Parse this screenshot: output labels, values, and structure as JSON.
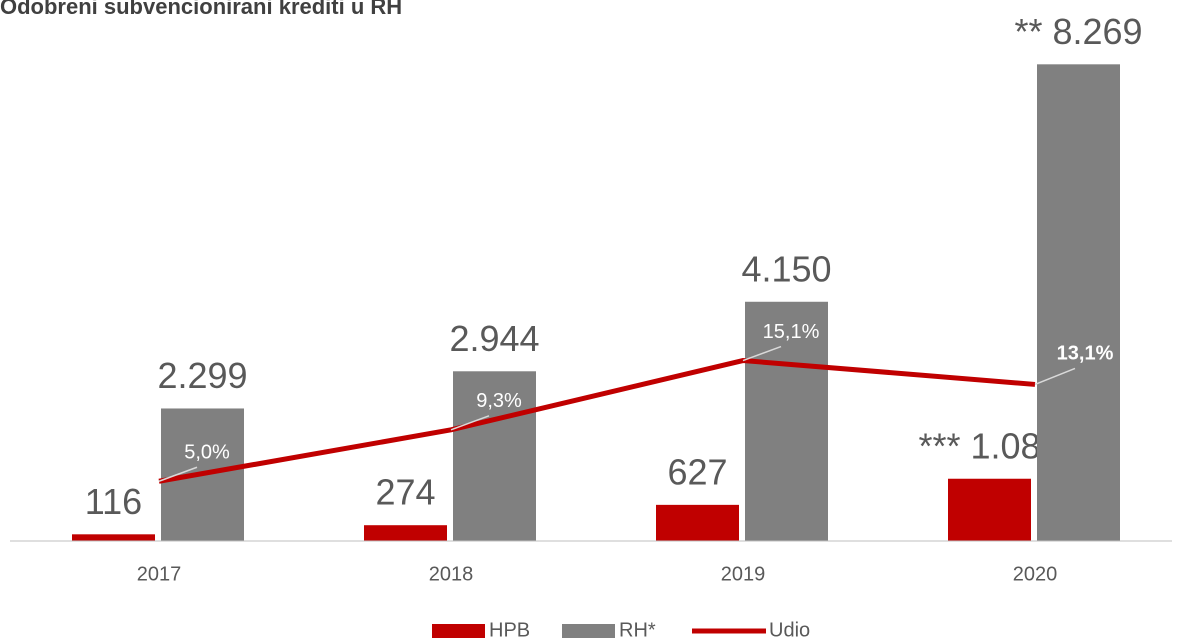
{
  "chart_data": {
    "type": "bar_line",
    "title": "Odobreni subvencionirani krediti u RH",
    "categories": [
      "2017",
      "2018",
      "2019",
      "2020"
    ],
    "series": [
      {
        "name": "HPB",
        "color": "#c00000",
        "type": "bar",
        "values": [
          116,
          274,
          627,
          1080
        ],
        "value_labels": [
          "116",
          "274",
          "627",
          "*** 1.080"
        ]
      },
      {
        "name": "RH*",
        "color": "#808080",
        "type": "bar",
        "values": [
          2299,
          2944,
          4150,
          8269
        ],
        "value_labels": [
          "2.299",
          "2.944",
          "4.150",
          "** 8.269"
        ]
      },
      {
        "name": "Udio",
        "color": "#c00000",
        "type": "line",
        "axis": "y2",
        "values": [
          5.0,
          9.3,
          15.1,
          13.1
        ],
        "value_labels": [
          "5,0%",
          "9,3%",
          "15,1%",
          "13,1%"
        ]
      }
    ],
    "ylim": [
      0,
      8500
    ],
    "y2lim": [
      0,
      41
    ],
    "legend": "bottom"
  }
}
